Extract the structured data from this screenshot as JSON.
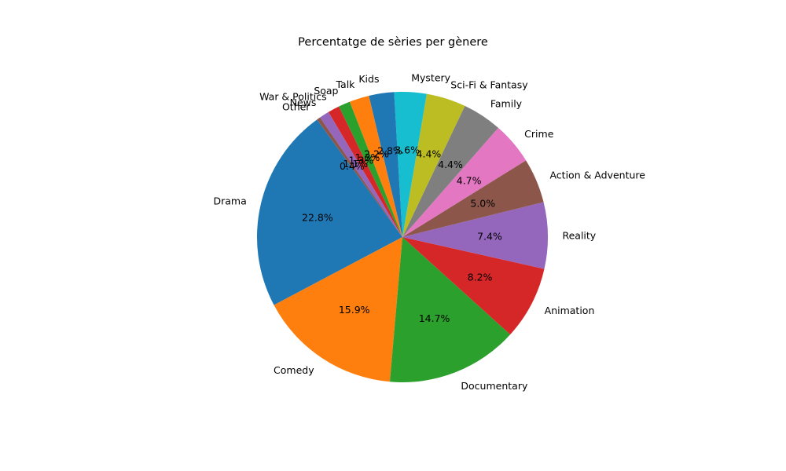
{
  "chart_data": {
    "type": "pie",
    "title": "Percentatge de sèries per gènere",
    "slices": [
      {
        "label": "Drama",
        "value": 22.8,
        "pct_label": "22.8%",
        "color": "#1f77b4"
      },
      {
        "label": "Comedy",
        "value": 15.9,
        "pct_label": "15.9%",
        "color": "#ff7f0e"
      },
      {
        "label": "Documentary",
        "value": 14.7,
        "pct_label": "14.7%",
        "color": "#2ca02c"
      },
      {
        "label": "Animation",
        "value": 8.2,
        "pct_label": "8.2%",
        "color": "#d62728"
      },
      {
        "label": "Reality",
        "value": 7.4,
        "pct_label": "7.4%",
        "color": "#9467bd"
      },
      {
        "label": "Action & Adventure",
        "value": 5.0,
        "pct_label": "5.0%",
        "color": "#8c564b"
      },
      {
        "label": "Crime",
        "value": 4.7,
        "pct_label": "4.7%",
        "color": "#e377c2"
      },
      {
        "label": "Family",
        "value": 4.4,
        "pct_label": "4.4%",
        "color": "#7f7f7f"
      },
      {
        "label": "Sci-Fi & Fantasy",
        "value": 4.4,
        "pct_label": "4.4%",
        "color": "#bcbd22"
      },
      {
        "label": "Mystery",
        "value": 3.6,
        "pct_label": "3.6%",
        "color": "#17becf"
      },
      {
        "label": "Kids",
        "value": 2.8,
        "pct_label": "2.8%",
        "color": "#1f77b4"
      },
      {
        "label": "Talk",
        "value": 2.2,
        "pct_label": "2.2%",
        "color": "#ff7f0e"
      },
      {
        "label": "Soap",
        "value": 1.3,
        "pct_label": "1.3%",
        "color": "#2ca02c"
      },
      {
        "label": "War & Politics",
        "value": 1.3,
        "pct_label": "1.3%",
        "color": "#d62728"
      },
      {
        "label": "News",
        "value": 1.1,
        "pct_label": "1.1%",
        "color": "#9467bd"
      },
      {
        "label": "Other",
        "value": 0.4,
        "pct_label": "0.4%",
        "color": "#8c564b"
      }
    ],
    "start_angle_deg": 126,
    "direction": "counterclockwise",
    "legend": "none",
    "grid": false
  }
}
